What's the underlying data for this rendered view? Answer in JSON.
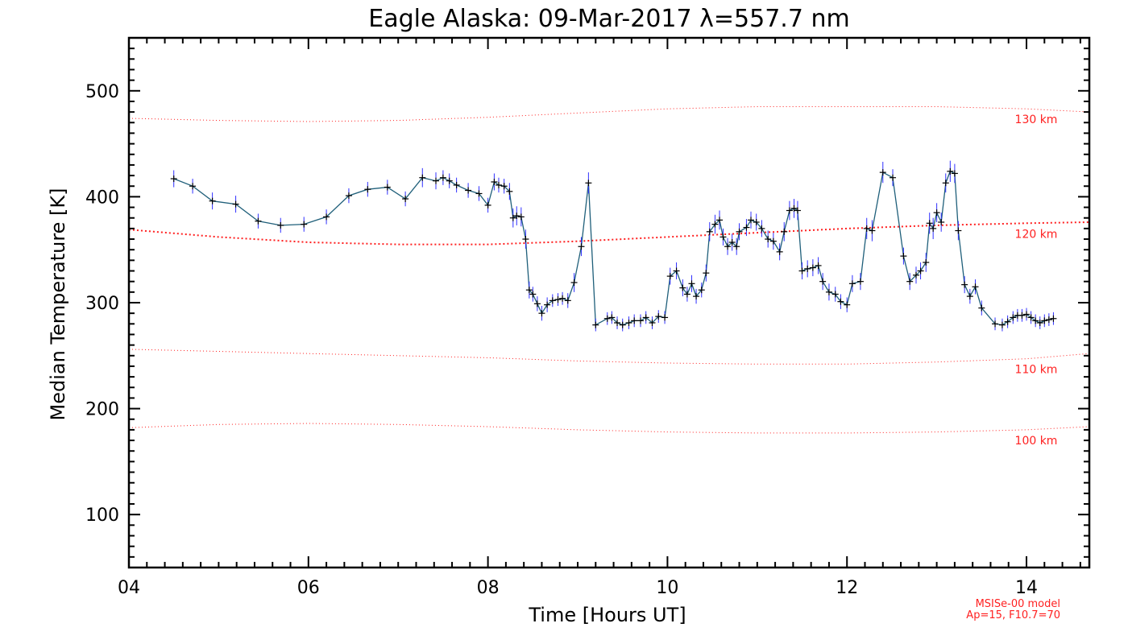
{
  "chart_data": {
    "type": "line",
    "title": "Eagle Alaska: 09-Mar-2017 λ=557.7 nm",
    "xlabel": "Time [Hours UT]",
    "ylabel": "Median Temperature [K]",
    "xlim": [
      4,
      14.7
    ],
    "ylim": [
      50,
      550
    ],
    "x_ticks": [
      "04",
      "06",
      "08",
      "10",
      "12",
      "14"
    ],
    "x_tick_values": [
      4,
      6,
      8,
      10,
      12,
      14
    ],
    "y_ticks": [
      "100",
      "200",
      "300",
      "400",
      "500"
    ],
    "y_tick_values": [
      100,
      200,
      300,
      400,
      500
    ],
    "grid": false,
    "colors": {
      "series": "#1f5f7a",
      "error_bars": "#3030ff",
      "markers": "#000000",
      "model": "#ff2020"
    },
    "series": [
      {
        "x": [
          4.5,
          4.71,
          4.93,
          5.19,
          5.44,
          5.69,
          5.95,
          6.2,
          6.45,
          6.66,
          6.88,
          7.08,
          7.27,
          7.42,
          7.5,
          7.57,
          7.65,
          7.78,
          7.9,
          8.0,
          8.07,
          8.12,
          8.18,
          8.24,
          8.28,
          8.32,
          8.37,
          8.42,
          8.46,
          8.5,
          8.55,
          8.6,
          8.66,
          8.72,
          8.78,
          8.83,
          8.89,
          8.96,
          9.04,
          9.12,
          9.2,
          9.33,
          9.38,
          9.44,
          9.5,
          9.57,
          9.63,
          9.7,
          9.76,
          9.83,
          9.9,
          9.97,
          10.03,
          10.1,
          10.17,
          10.22,
          10.27,
          10.32,
          10.38,
          10.43,
          10.47,
          10.53,
          10.58,
          10.62,
          10.67,
          10.72,
          10.77,
          10.8,
          10.88,
          10.93,
          10.99,
          11.05,
          11.12,
          11.18,
          11.25,
          11.3,
          11.36,
          11.41,
          11.45,
          11.5,
          11.56,
          11.62,
          11.68,
          11.73,
          11.8,
          11.87,
          11.93,
          12.0,
          12.06,
          12.15,
          12.22,
          12.28,
          12.4,
          12.51,
          12.63,
          12.7,
          12.77,
          12.82,
          12.88,
          12.92,
          12.96,
          13.0,
          13.05,
          13.1,
          13.15,
          13.2,
          13.24,
          13.31,
          13.37,
          13.43,
          13.5,
          13.65,
          13.73,
          13.79,
          13.85,
          13.9,
          13.95,
          14.0,
          14.05,
          14.1,
          14.15,
          14.2,
          14.25,
          14.3
        ],
        "values": [
          417,
          410,
          396,
          393,
          377,
          373,
          374,
          381,
          401,
          407,
          409,
          398,
          418,
          415,
          418,
          415,
          411,
          406,
          403,
          392,
          414,
          411,
          410,
          405,
          380,
          382,
          381,
          360,
          312,
          308,
          299,
          290,
          298,
          302,
          303,
          304,
          302,
          319,
          353,
          413,
          279,
          285,
          286,
          281,
          279,
          281,
          283,
          283,
          286,
          281,
          287,
          286,
          325,
          330,
          314,
          308,
          318,
          306,
          312,
          328,
          367,
          374,
          378,
          362,
          353,
          357,
          353,
          367,
          371,
          378,
          376,
          370,
          360,
          358,
          348,
          367,
          387,
          389,
          387,
          330,
          332,
          333,
          335,
          320,
          310,
          308,
          301,
          298,
          318,
          320,
          370,
          368,
          423,
          418,
          344,
          320,
          326,
          330,
          338,
          375,
          370,
          385,
          376,
          413,
          424,
          422,
          368,
          317,
          306,
          315,
          295,
          280,
          279,
          282,
          286,
          288,
          288,
          289,
          286,
          283,
          281,
          283,
          284,
          285
        ],
        "errors": [
          8,
          7,
          8,
          8,
          7,
          7,
          7,
          7,
          7,
          7,
          7,
          7,
          9,
          8,
          7,
          7,
          7,
          7,
          7,
          7,
          8,
          7,
          7,
          8,
          9,
          9,
          9,
          9,
          8,
          7,
          7,
          7,
          7,
          6,
          6,
          6,
          7,
          9,
          9,
          10,
          6,
          6,
          6,
          6,
          6,
          6,
          6,
          6,
          6,
          6,
          6,
          6,
          8,
          8,
          8,
          7,
          8,
          7,
          7,
          8,
          9,
          9,
          9,
          8,
          8,
          8,
          8,
          8,
          8,
          8,
          8,
          8,
          8,
          8,
          8,
          9,
          9,
          9,
          9,
          8,
          8,
          8,
          8,
          8,
          8,
          7,
          7,
          7,
          8,
          8,
          10,
          10,
          10,
          8,
          8,
          8,
          8,
          8,
          9,
          10,
          10,
          9,
          9,
          9,
          10,
          9,
          9,
          8,
          7,
          7,
          7,
          6,
          6,
          6,
          6,
          6,
          6,
          6,
          6,
          6,
          6,
          6,
          6,
          6
        ]
      }
    ],
    "model_curves": [
      {
        "label": "130 km",
        "x": [
          4.0,
          5.0,
          6.0,
          7.0,
          8.0,
          9.0,
          10.0,
          11.0,
          12.0,
          13.0,
          14.0,
          14.7
        ],
        "values": [
          474,
          472,
          471,
          472,
          475,
          479,
          483,
          485,
          485,
          485,
          483,
          480
        ]
      },
      {
        "label": "120 km",
        "x": [
          4.0,
          5.0,
          6.0,
          7.0,
          8.0,
          9.0,
          10.0,
          11.0,
          12.0,
          13.0,
          14.0,
          14.7
        ],
        "values": [
          369,
          362,
          357,
          355,
          355,
          358,
          362,
          366,
          370,
          373,
          375,
          376
        ]
      },
      {
        "label": "110 km",
        "x": [
          4.0,
          5.0,
          6.0,
          7.0,
          8.0,
          9.0,
          10.0,
          11.0,
          12.0,
          13.0,
          14.0,
          14.7
        ],
        "values": [
          256,
          254,
          252,
          250,
          248,
          245,
          243,
          242,
          242,
          244,
          247,
          252
        ]
      },
      {
        "label": "100 km",
        "x": [
          4.0,
          5.0,
          6.0,
          7.0,
          8.0,
          9.0,
          10.0,
          11.0,
          12.0,
          13.0,
          14.0,
          14.7
        ],
        "values": [
          182,
          185,
          186,
          185,
          183,
          180,
          178,
          177,
          177,
          178,
          180,
          183
        ]
      }
    ],
    "annotations": [
      "MSISe-00 model",
      "Ap=15, F10.7=70"
    ]
  }
}
